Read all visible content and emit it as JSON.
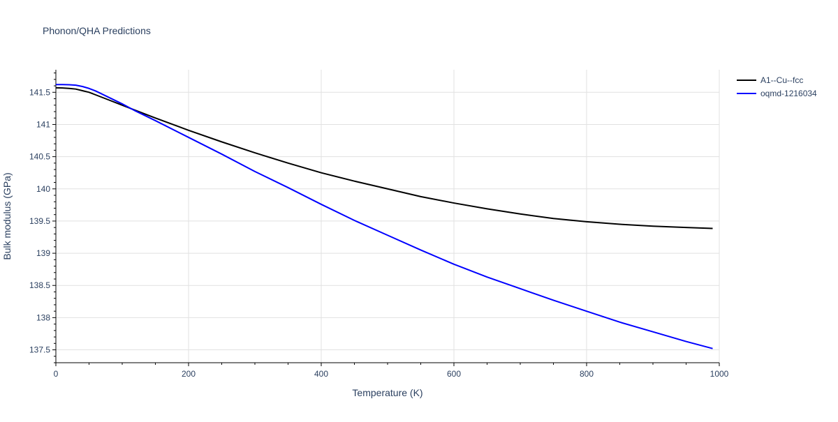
{
  "chart_data": {
    "type": "line",
    "title": "Phonon/QHA Predictions",
    "xlabel": "Temperature (K)",
    "ylabel": "Bulk modulus (GPa)",
    "xlim": [
      0,
      1000
    ],
    "ylim": [
      137.3,
      141.85
    ],
    "x_ticks": [
      0,
      200,
      400,
      600,
      800,
      1000
    ],
    "x_tick_labels": [
      "0",
      "200",
      "400",
      "600",
      "800",
      "1000"
    ],
    "y_ticks": [
      137.5,
      138,
      138.5,
      139,
      139.5,
      140,
      140.5,
      141,
      141.5
    ],
    "y_tick_labels": [
      "137.5",
      "138",
      "138.5",
      "139",
      "139.5",
      "140",
      "140.5",
      "141",
      "141.5"
    ],
    "grid": true,
    "legend_position": "top-right",
    "series": [
      {
        "name": "A1--Cu--fcc",
        "color": "#000000",
        "x": [
          0,
          10,
          20,
          30,
          40,
          50,
          60,
          80,
          100,
          120,
          150,
          200,
          250,
          300,
          350,
          400,
          450,
          500,
          550,
          600,
          650,
          700,
          750,
          800,
          850,
          900,
          950,
          990
        ],
        "y": [
          141.57,
          141.567,
          141.56,
          141.55,
          141.525,
          141.5,
          141.46,
          141.38,
          141.3,
          141.22,
          141.1,
          140.91,
          140.73,
          140.56,
          140.4,
          140.25,
          140.12,
          140,
          139.88,
          139.78,
          139.69,
          139.61,
          139.54,
          139.49,
          139.45,
          139.42,
          139.4,
          139.385
        ]
      },
      {
        "name": "oqmd-1216034",
        "color": "#0000ff",
        "x": [
          0,
          10,
          20,
          30,
          40,
          50,
          60,
          80,
          100,
          120,
          150,
          200,
          250,
          300,
          350,
          400,
          450,
          500,
          550,
          600,
          650,
          700,
          750,
          800,
          850,
          900,
          950,
          990
        ],
        "y": [
          141.62,
          141.62,
          141.617,
          141.61,
          141.59,
          141.56,
          141.52,
          141.42,
          141.32,
          141.21,
          141.06,
          140.8,
          140.54,
          140.27,
          140.02,
          139.76,
          139.51,
          139.28,
          139.05,
          138.83,
          138.63,
          138.45,
          138.27,
          138.1,
          137.93,
          137.78,
          137.63,
          137.52
        ]
      }
    ]
  }
}
